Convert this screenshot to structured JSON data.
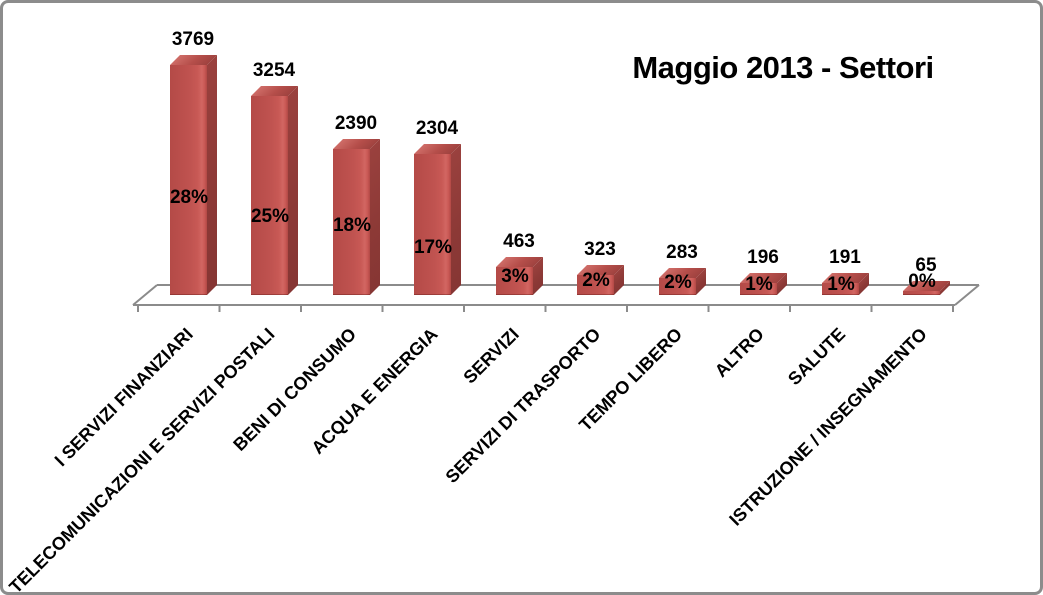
{
  "chart_data": {
    "type": "bar",
    "style": "3d-column",
    "title": "Maggio 2013 - Settori",
    "categories": [
      "I SERVIZI FINANZIARI",
      "TELECOMUNICAZIONI E SERVIZI POSTALI",
      "BENI DI CONSUMO",
      "ACQUA E ENERGIA",
      "SERVIZI",
      "SERVIZI DI TRASPORTO",
      "TEMPO LIBERO",
      "ALTRO",
      "SALUTE",
      "ISTRUZIONE / INSEGNAMENTO"
    ],
    "values": [
      3769,
      3254,
      2390,
      2304,
      463,
      323,
      283,
      196,
      191,
      65
    ],
    "percent_labels": [
      "28%",
      "25%",
      "18%",
      "17%",
      "3%",
      "2%",
      "2%",
      "1%",
      "1%",
      "0%"
    ],
    "ylim": [
      0,
      3769
    ],
    "grid": false,
    "legend": "none",
    "colors": {
      "bar_front": "#c0504d",
      "bar_side": "#8c3936",
      "bar_top": "#b54e4a",
      "axis_line": "#8b8b8b",
      "label_text": "#000000",
      "background": "#ffffff",
      "frame_border": "#8c8c8c"
    }
  }
}
